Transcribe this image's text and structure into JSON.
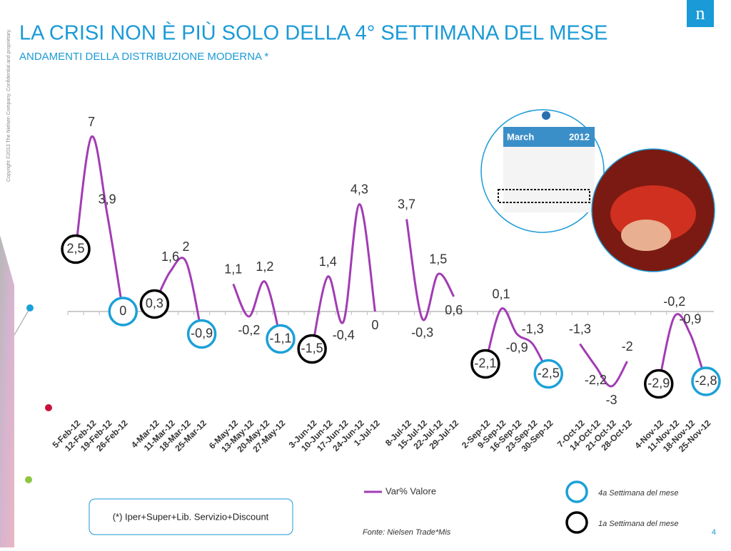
{
  "header": {
    "title": "LA CRISI NON È PIÙ SOLO DELLA 4° SETTIMANA DEL MESE",
    "subtitle": "ANDAMENTI DELLA DISTRIBUZIONE MODERNA *",
    "logo": "n",
    "copyright": "Copyright ©2013 The Nielsen Company. Confidential and proprietary."
  },
  "calendar": {
    "month": "March",
    "year": "2012"
  },
  "chart_data": {
    "type": "line",
    "categories": [
      "5-Feb-12",
      "12-Feb-12",
      "19-Feb-12",
      "26-Feb-12",
      null,
      "4-Mar-12",
      "11-Mar-12",
      "18-Mar-12",
      "25-Mar-12",
      null,
      "6-May-12",
      "13-May-12",
      "20-May-12",
      "27-May-12",
      null,
      "3-Jun-12",
      "10-Jun-12",
      "17-Jun-12",
      "24-Jun-12",
      "1-Jul-12",
      null,
      "8-Jul-12",
      "15-Jul-12",
      "22-Jul-12",
      "29-Jul-12",
      null,
      "2-Sep-12",
      "9-Sep-12",
      "16-Sep-12",
      "23-Sep-12",
      "30-Sep-12",
      null,
      "7-Oct-12",
      "14-Oct-12",
      "21-Oct-12",
      "28-Oct-12",
      null,
      "4-Nov-12",
      "11-Nov-12",
      "18-Nov-12",
      "25-Nov-12"
    ],
    "series": [
      {
        "name": "Var% Valore",
        "color": "#a23cb4",
        "values": [
          2.5,
          7,
          3.9,
          0,
          null,
          0.3,
          1.6,
          2,
          -0.9,
          null,
          1.1,
          -0.2,
          1.2,
          -1.1,
          null,
          -1.5,
          1.4,
          -0.4,
          4.3,
          0,
          null,
          3.7,
          -0.3,
          1.5,
          0.6,
          null,
          -2.1,
          0.1,
          -0.9,
          -1.3,
          -2.5,
          null,
          -1.3,
          -2.2,
          -3,
          -2,
          null,
          -2.9,
          -0.2,
          -0.9,
          -2.8
        ],
        "value_labels": [
          "2,5",
          "7",
          "3,9",
          "0",
          null,
          "0,3",
          "1,6",
          "2",
          "-0,9",
          null,
          "1,1",
          "-0,2",
          "1,2",
          "-1,1",
          null,
          "-1,5",
          "1,4",
          "-0,4",
          "4,3",
          "0",
          null,
          "3,7",
          "-0,3",
          "1,5",
          "0,6",
          null,
          "-2,1",
          "0,1",
          "-0,9",
          "-1,3",
          "-2,5",
          null,
          "-1,3",
          "-2,2",
          "-3",
          "-2",
          null,
          "-2,9",
          "-0,2",
          "-0,9",
          "-2,8"
        ]
      }
    ],
    "highlights": [
      {
        "label": "4a Settimana del mese",
        "color": "#1ba0d8",
        "points": [
          3,
          8,
          13,
          30,
          40
        ]
      },
      {
        "label": "1a Settimana del mese",
        "color": "#000000",
        "points": [
          0,
          5,
          15,
          26,
          37
        ]
      }
    ],
    "ylim": [
      -3.5,
      7.5
    ],
    "footnote": "(*) Iper+Super+Lib. Servizio+Discount",
    "source": "Fonte: Nielsen Trade*Mis",
    "page": "4"
  }
}
